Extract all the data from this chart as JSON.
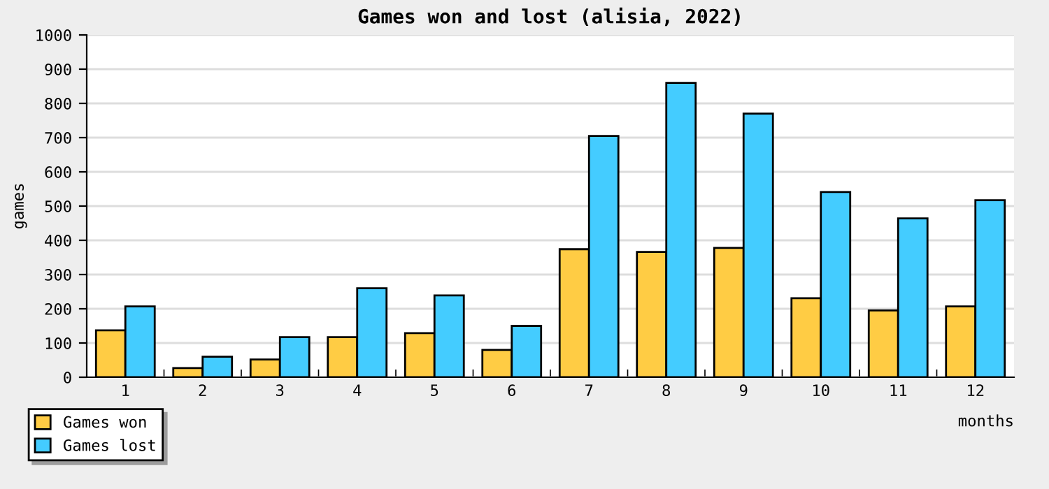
{
  "chart_data": {
    "type": "bar",
    "title": "Games won and lost (alisia, 2022)",
    "xlabel": "months",
    "ylabel": "games",
    "categories": [
      "1",
      "2",
      "3",
      "4",
      "5",
      "6",
      "7",
      "8",
      "9",
      "10",
      "11",
      "12"
    ],
    "series": [
      {
        "name": "Games won",
        "color": "#ffcc44",
        "values": [
          137,
          27,
          52,
          117,
          129,
          80,
          374,
          366,
          378,
          231,
          195,
          207
        ]
      },
      {
        "name": "Games lost",
        "color": "#44ccff",
        "values": [
          207,
          60,
          117,
          260,
          239,
          150,
          705,
          860,
          770,
          541,
          464,
          517
        ]
      }
    ],
    "ylim": [
      0,
      1000
    ],
    "yticks": [
      0,
      100,
      200,
      300,
      400,
      500,
      600,
      700,
      800,
      900,
      1000
    ],
    "grid": "y",
    "legend": "bottom left"
  }
}
